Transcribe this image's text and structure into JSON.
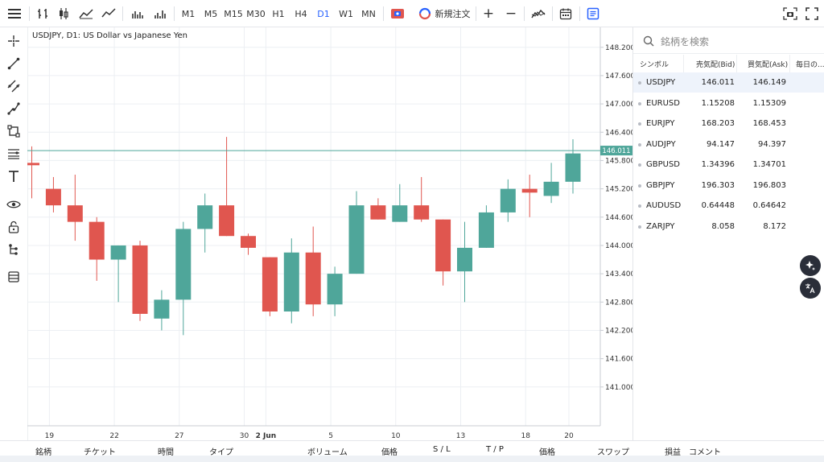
{
  "toolbar": {
    "timeframes": [
      "M1",
      "M5",
      "M15",
      "M30",
      "H1",
      "H4",
      "D1",
      "W1",
      "MN"
    ],
    "active_timeframe": "D1",
    "new_order_label": "新規注文",
    "zoom_in": "+",
    "zoom_out": "−"
  },
  "chart": {
    "title": "USDJPY, D1: US Dollar vs Japanese Yen",
    "current_price": "146.011",
    "colors": {
      "up": "#4fa69a",
      "down": "#e0564f",
      "grid": "#eceff3",
      "price_line": "#4fa69a"
    }
  },
  "chart_data": {
    "type": "candlestick",
    "title": "USDJPY, D1: US Dollar vs Japanese Yen",
    "y_ticks": [
      "148.200",
      "147.600",
      "147.000",
      "146.400",
      "145.800",
      "145.200",
      "144.600",
      "144.000",
      "143.400",
      "142.800",
      "142.200",
      "141.600",
      "141.000"
    ],
    "x_ticks": [
      "19",
      "22",
      "27",
      "30",
      "2 Jun",
      "5",
      "10",
      "13",
      "18",
      "20"
    ],
    "ylim": [
      140.28,
      148.52
    ],
    "current_price": 146.011,
    "candles": [
      {
        "o": 145.75,
        "h": 146.1,
        "l": 145.0,
        "c": 145.7
      },
      {
        "o": 145.2,
        "h": 145.45,
        "l": 144.7,
        "c": 144.85
      },
      {
        "o": 144.85,
        "h": 145.5,
        "l": 144.1,
        "c": 144.5
      },
      {
        "o": 144.5,
        "h": 144.6,
        "l": 143.25,
        "c": 143.7
      },
      {
        "o": 143.7,
        "h": 144.0,
        "l": 142.8,
        "c": 144.0
      },
      {
        "o": 144.0,
        "h": 144.1,
        "l": 142.4,
        "c": 142.55
      },
      {
        "o": 142.45,
        "h": 143.05,
        "l": 142.2,
        "c": 142.85
      },
      {
        "o": 142.85,
        "h": 144.5,
        "l": 142.1,
        "c": 144.35
      },
      {
        "o": 144.35,
        "h": 145.1,
        "l": 143.85,
        "c": 144.85
      },
      {
        "o": 144.85,
        "h": 146.3,
        "l": 144.2,
        "c": 144.2
      },
      {
        "o": 144.2,
        "h": 144.25,
        "l": 143.8,
        "c": 143.95
      },
      {
        "o": 143.75,
        "h": 143.75,
        "l": 142.5,
        "c": 142.6
      },
      {
        "o": 142.6,
        "h": 144.15,
        "l": 142.35,
        "c": 143.85
      },
      {
        "o": 143.85,
        "h": 144.4,
        "l": 142.5,
        "c": 142.75
      },
      {
        "o": 142.75,
        "h": 143.55,
        "l": 142.5,
        "c": 143.4
      },
      {
        "o": 143.4,
        "h": 145.15,
        "l": 143.4,
        "c": 144.85
      },
      {
        "o": 144.85,
        "h": 145.0,
        "l": 144.55,
        "c": 144.55
      },
      {
        "o": 144.5,
        "h": 145.3,
        "l": 144.5,
        "c": 144.85
      },
      {
        "o": 144.85,
        "h": 145.45,
        "l": 144.5,
        "c": 144.55
      },
      {
        "o": 144.55,
        "h": 144.55,
        "l": 143.15,
        "c": 143.45
      },
      {
        "o": 143.45,
        "h": 144.5,
        "l": 142.8,
        "c": 143.95
      },
      {
        "o": 143.95,
        "h": 144.85,
        "l": 143.95,
        "c": 144.7
      },
      {
        "o": 144.7,
        "h": 145.4,
        "l": 144.5,
        "c": 145.2
      },
      {
        "o": 145.2,
        "h": 145.5,
        "l": 144.6,
        "c": 145.12
      },
      {
        "o": 145.05,
        "h": 145.75,
        "l": 144.9,
        "c": 145.35
      },
      {
        "o": 145.35,
        "h": 146.25,
        "l": 145.1,
        "c": 145.95
      }
    ]
  },
  "watchlist": {
    "search_placeholder": "銘柄を検索",
    "headers": {
      "symbol": "シンボル",
      "bid": "売気配(Bid)",
      "ask": "買気配(Ask)",
      "daily": "毎日の..."
    },
    "rows": [
      {
        "symbol": "USDJPY",
        "bid": "146.011",
        "ask": "146.149"
      },
      {
        "symbol": "EURUSD",
        "bid": "1.15208",
        "ask": "1.15309"
      },
      {
        "symbol": "EURJPY",
        "bid": "168.203",
        "ask": "168.453"
      },
      {
        "symbol": "AUDJPY",
        "bid": "94.147",
        "ask": "94.397"
      },
      {
        "symbol": "GBPUSD",
        "bid": "1.34396",
        "ask": "1.34701"
      },
      {
        "symbol": "GBPJPY",
        "bid": "196.303",
        "ask": "196.803"
      },
      {
        "symbol": "AUDUSD",
        "bid": "0.64448",
        "ask": "0.64642"
      },
      {
        "symbol": "ZARJPY",
        "bid": "8.058",
        "ask": "8.172"
      }
    ]
  },
  "bottom": {
    "columns": [
      "銘柄",
      "チケット",
      "時間",
      "タイプ",
      "ボリューム",
      "価格",
      "S / L",
      "T / P",
      "価格",
      "スワップ",
      "損益",
      "コメント"
    ]
  }
}
